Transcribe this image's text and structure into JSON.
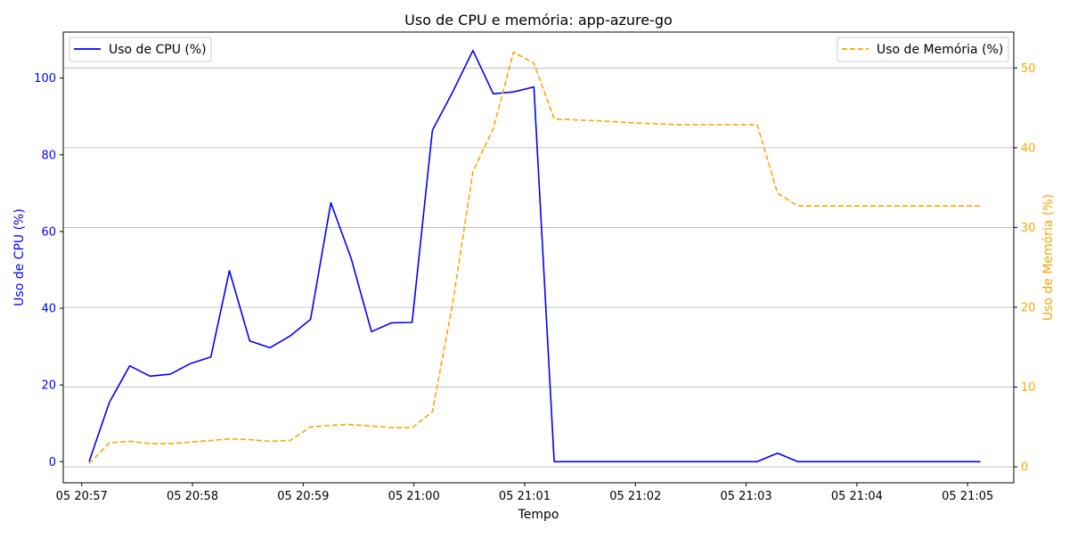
{
  "chart_data": {
    "type": "line",
    "title": "Uso de CPU e memória: app-azure-go",
    "xlabel": "Tempo",
    "ylabel_left": "Uso de CPU (%)",
    "ylabel_right": "Uso de Memória (%)",
    "x_range": [
      "20:56:50",
      "21:05:25"
    ],
    "x_ticks": [
      "05 20:57",
      "05 20:58",
      "05 20:59",
      "05 21:00",
      "05 21:01",
      "05 21:02",
      "05 21:03",
      "05 21:04",
      "05 21:05"
    ],
    "ylim_left": [
      -5.5,
      112
    ],
    "ylim_right": [
      -2,
      54.5
    ],
    "yticks_left": [
      "0",
      "20",
      "40",
      "60",
      "80",
      "100"
    ],
    "yticks_right": [
      "0",
      "10",
      "20",
      "30",
      "40",
      "50"
    ],
    "grid": "horizontal, right axis",
    "legend_left_placement": "top-left",
    "legend_right_placement": "top-right",
    "colors": {
      "cpu": "#0000ff",
      "memory": "#ffa500",
      "grid": "#b0b0b0"
    },
    "x": [
      "20:57:04",
      "20:57:15",
      "20:57:26",
      "20:57:37",
      "20:57:48",
      "20:57:59",
      "20:58:10",
      "20:58:20",
      "20:58:31",
      "20:58:42",
      "20:58:53",
      "20:59:04",
      "20:59:15",
      "20:59:26",
      "20:59:37",
      "20:59:48",
      "20:59:59",
      "21:00:10",
      "21:00:21",
      "21:00:32",
      "21:00:43",
      "21:00:54",
      "21:01:05",
      "21:01:16",
      "21:01:38",
      "21:02:00",
      "21:02:22",
      "21:02:44",
      "21:03:06",
      "21:03:17",
      "21:03:28",
      "21:03:50",
      "21:04:12",
      "21:04:34",
      "21:04:56",
      "21:05:07"
    ],
    "series": [
      {
        "name": "Uso de CPU (%)",
        "axis": "left",
        "style": "solid",
        "values": [
          0.0,
          15.5,
          25.0,
          22.3,
          22.8,
          25.6,
          27.3,
          49.8,
          31.5,
          29.7,
          32.8,
          37.1,
          67.5,
          53.0,
          33.9,
          36.2,
          36.3,
          86.4,
          96.4,
          107.2,
          95.9,
          96.4,
          97.7,
          0.0,
          0.0,
          0.0,
          0.0,
          0.0,
          0.0,
          2.2,
          0.0,
          0.0,
          0.0,
          0.0,
          0.0,
          0.0
        ]
      },
      {
        "name": "Uso de Memória (%)",
        "axis": "right",
        "style": "dashed",
        "values": [
          0.4,
          3.0,
          3.2,
          2.9,
          2.9,
          3.1,
          3.3,
          3.5,
          3.4,
          3.2,
          3.3,
          5.0,
          5.2,
          5.3,
          5.1,
          4.9,
          4.9,
          6.9,
          20.5,
          37.0,
          42.4,
          52.0,
          50.6,
          43.6,
          43.4,
          43.1,
          42.9,
          42.9,
          42.9,
          34.3,
          32.7,
          32.7,
          32.7,
          32.7,
          32.7,
          32.7
        ]
      }
    ]
  }
}
